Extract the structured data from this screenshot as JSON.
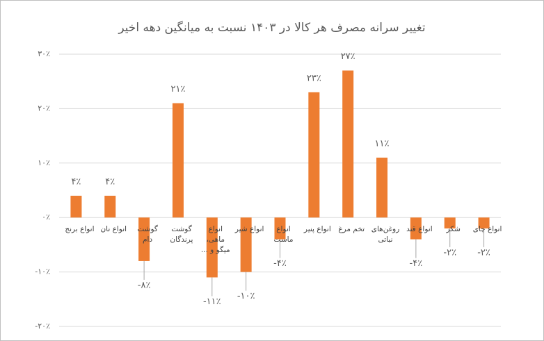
{
  "chart_data": {
    "type": "bar",
    "title": "تغییر سرانه مصرف هر کالا در ۱۴۰۳ نسبت به میانگین دهه اخیر",
    "categories": [
      "انواع برنج",
      "انواع نان",
      "گوشت دام",
      "گوشت پرندگان",
      "انواع ماهی، میگو و ...",
      "انواع شیر",
      "انواع ماست",
      "انواع پنیر",
      "تخم مرغ",
      "روغن‌های نباتی",
      "انواع قند",
      "شکر",
      "انواع چای"
    ],
    "values": [
      4,
      4,
      -8,
      21,
      -11,
      -10,
      -4,
      23,
      27,
      11,
      -4,
      -2,
      -2
    ],
    "value_labels": [
      "۴٪",
      "۴٪",
      "-۸٪",
      "۲۱٪",
      "-۱۱٪",
      "-۱۰٪",
      "-۴٪",
      "۲۳٪",
      "۲۷٪",
      "۱۱٪",
      "-۴٪",
      "-۲٪",
      "-۲٪"
    ],
    "color": "#ed7d31",
    "ylim": [
      -20,
      30
    ],
    "yticks": [
      {
        "value": -20,
        "label": "-۲۰٪"
      },
      {
        "value": -10,
        "label": "-۱۰٪"
      },
      {
        "value": 0,
        "label": "۰٪"
      },
      {
        "value": 10,
        "label": "۱۰٪"
      },
      {
        "value": 20,
        "label": "۲۰٪"
      },
      {
        "value": 30,
        "label": "۳۰٪"
      }
    ],
    "grid": true
  }
}
